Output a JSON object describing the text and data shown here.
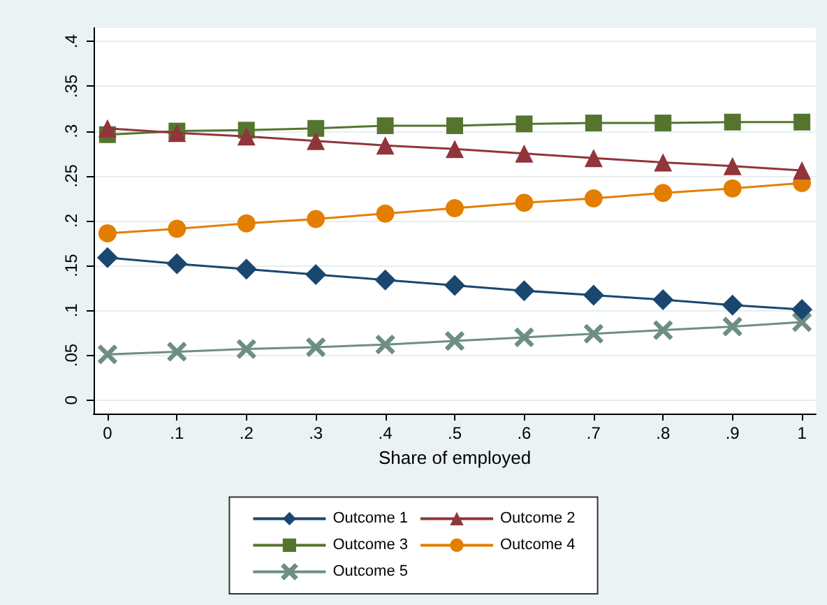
{
  "chart_data": {
    "type": "line",
    "xlabel": "Share of employed",
    "x": [
      0,
      0.1,
      0.2,
      0.3,
      0.4,
      0.5,
      0.6,
      0.7,
      0.8,
      0.9,
      1
    ],
    "series": [
      {
        "name": "Outcome 1",
        "color": "#1a476f",
        "marker": "diamond",
        "values": [
          0.159,
          0.152,
          0.146,
          0.14,
          0.134,
          0.128,
          0.122,
          0.117,
          0.112,
          0.106,
          0.101
        ]
      },
      {
        "name": "Outcome 2",
        "color": "#90353b",
        "marker": "triangle",
        "values": [
          0.303,
          0.298,
          0.294,
          0.289,
          0.284,
          0.28,
          0.275,
          0.27,
          0.265,
          0.261,
          0.256
        ]
      },
      {
        "name": "Outcome 3",
        "color": "#55752f",
        "marker": "square",
        "values": [
          0.296,
          0.3,
          0.301,
          0.303,
          0.306,
          0.306,
          0.308,
          0.309,
          0.309,
          0.31,
          0.31
        ]
      },
      {
        "name": "Outcome 4",
        "color": "#e37e00",
        "marker": "circle",
        "values": [
          0.186,
          0.191,
          0.197,
          0.202,
          0.208,
          0.214,
          0.22,
          0.225,
          0.231,
          0.236,
          0.242
        ]
      },
      {
        "name": "Outcome 5",
        "color": "#6e8e84",
        "marker": "cross",
        "values": [
          0.051,
          0.054,
          0.057,
          0.059,
          0.062,
          0.066,
          0.07,
          0.074,
          0.078,
          0.082,
          0.087
        ]
      }
    ],
    "xlim": [
      -0.02,
      1.02
    ],
    "xticks": [
      0,
      {
        "value": 0.1,
        "label": ".1"
      },
      {
        "value": 0.2,
        "label": ".2"
      },
      {
        "value": 0.3,
        "label": ".3"
      },
      {
        "value": 0.4,
        "label": ".4"
      },
      {
        "value": 0.5,
        "label": ".5"
      },
      {
        "value": 0.6,
        "label": ".6"
      },
      {
        "value": 0.7,
        "label": ".7"
      },
      {
        "value": 0.8,
        "label": ".8"
      },
      {
        "value": 0.9,
        "label": ".9"
      },
      1
    ],
    "ylim": [
      -0.015,
      0.415
    ],
    "yticks": [
      0,
      {
        "value": 0.05,
        "label": ".05"
      },
      {
        "value": 0.1,
        "label": ".1"
      },
      {
        "value": 0.15,
        "label": ".15"
      },
      {
        "value": 0.2,
        "label": ".2"
      },
      {
        "value": 0.25,
        "label": ".25"
      },
      {
        "value": 0.3,
        "label": ".3"
      },
      {
        "value": 0.35,
        "label": ".35"
      },
      {
        "value": 0.4,
        "label": ".4"
      }
    ],
    "grid": "y",
    "legend": "bottom",
    "line_style": "solid"
  }
}
